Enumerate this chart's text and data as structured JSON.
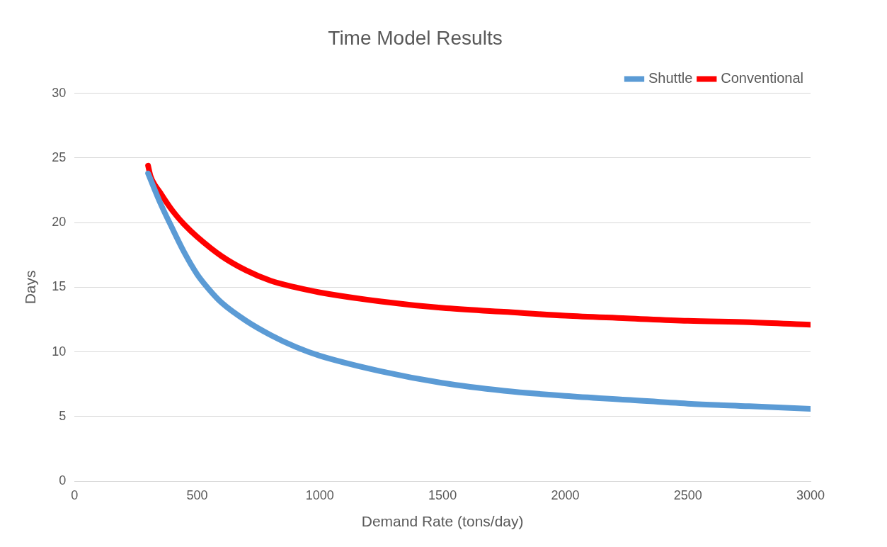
{
  "chart_data": {
    "type": "line",
    "title": "Time Model Results",
    "xlabel": "Demand Rate (tons/day)",
    "ylabel": "Days",
    "xlim": [
      0,
      3000
    ],
    "xticks": [
      0,
      500,
      1000,
      1500,
      2000,
      2500,
      3000
    ],
    "ylim": [
      0,
      30
    ],
    "yticks": [
      0,
      5,
      10,
      15,
      20,
      25,
      30
    ],
    "grid": "y",
    "legend": "top right",
    "marker": "none",
    "line_style": "solid",
    "series": [
      {
        "name": "Shuttle",
        "color": "#5b9bd5",
        "x": [
          300,
          350,
          400,
          450,
          500,
          550,
          600,
          700,
          800,
          900,
          1000,
          1250,
          1500,
          1750,
          2000,
          2250,
          2500,
          2750,
          3000
        ],
        "values": [
          23.8,
          21.5,
          19.5,
          17.6,
          16.0,
          14.8,
          13.8,
          12.4,
          11.3,
          10.4,
          9.7,
          8.5,
          7.6,
          7.0,
          6.6,
          6.3,
          6.0,
          5.8,
          5.6
        ]
      },
      {
        "name": "Conventional",
        "color": "#ff0000",
        "x": [
          300,
          310,
          350,
          400,
          450,
          500,
          600,
          700,
          800,
          900,
          1000,
          1250,
          1500,
          1750,
          2000,
          2250,
          2500,
          2750,
          3000
        ],
        "values": [
          24.4,
          23.6,
          22.3,
          20.9,
          19.8,
          18.9,
          17.4,
          16.3,
          15.5,
          15.0,
          14.6,
          13.9,
          13.4,
          13.1,
          12.8,
          12.6,
          12.4,
          12.3,
          12.1
        ]
      }
    ]
  }
}
